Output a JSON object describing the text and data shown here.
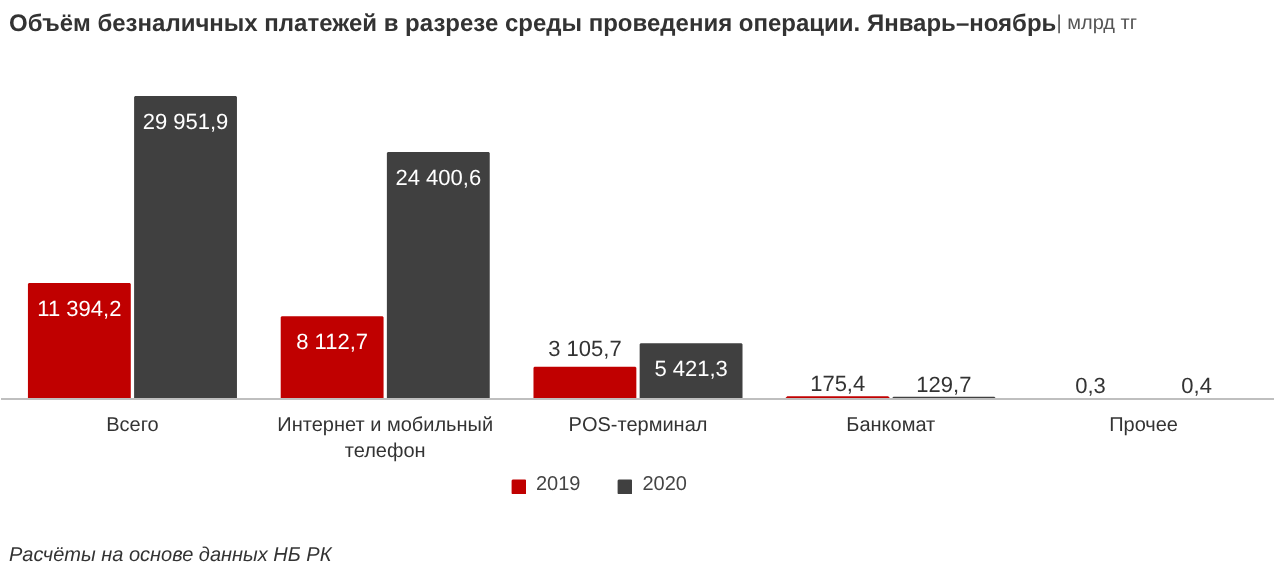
{
  "chart_data": {
    "type": "bar",
    "title": "Объём безналичных платежей в разрезе среды проведения операции. Январь–ноябрь",
    "subtitle": "| млрд тг",
    "categories": [
      "Всего",
      "Интернет и мобильный телефон",
      "POS-терминал",
      "Банкомат",
      "Прочее"
    ],
    "series": [
      {
        "name": "2019",
        "color": "#c00000",
        "values": [
          11394.2,
          8112.7,
          3105.7,
          175.4,
          0.3
        ],
        "value_labels": [
          "11 394,2",
          "8 112,7",
          "3 105,7",
          "175,4",
          "0,3"
        ]
      },
      {
        "name": "2020",
        "color": "#404040",
        "values": [
          29951.9,
          24400.6,
          5421.3,
          129.7,
          0.4
        ],
        "value_labels": [
          "29 951,9",
          "24 400,6",
          "5 421,3",
          "129,7",
          "0,4"
        ]
      }
    ],
    "legend": "bottom",
    "grid": false,
    "annotations": [
      "Расчёты на основе данных НБ РК"
    ]
  }
}
